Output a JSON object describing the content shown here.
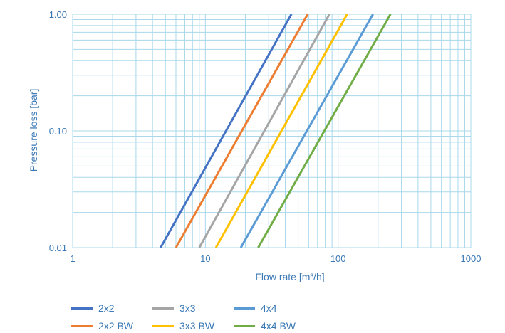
{
  "chart_data": {
    "type": "line",
    "xscale": "log",
    "yscale": "log",
    "xlim": [
      1,
      1000
    ],
    "ylim": [
      0.01,
      1.0
    ],
    "xlabel": "Flow rate [m³/h]",
    "ylabel": "Pressure loss [bar]",
    "x_ticks": [
      1,
      10,
      100,
      1000
    ],
    "x_tick_labels": [
      "1",
      "10",
      "100",
      "1000"
    ],
    "y_ticks": [
      0.01,
      0.1,
      1.0
    ],
    "y_tick_labels": [
      "0.01",
      "0.10",
      "1.00"
    ],
    "grid": true,
    "legend_position": "bottom-left",
    "series": [
      {
        "name": "2x2",
        "color": "#4472c4",
        "x": [
          4.6,
          44.5
        ],
        "y": [
          0.01,
          1.0
        ]
      },
      {
        "name": "2x2 BW",
        "color": "#ed7d31",
        "x": [
          6.0,
          59.0
        ],
        "y": [
          0.01,
          1.0
        ]
      },
      {
        "name": "3x3",
        "color": "#a5a5a5",
        "x": [
          9.0,
          86.0
        ],
        "y": [
          0.01,
          1.0
        ]
      },
      {
        "name": "3x3 BW",
        "color": "#ffc000",
        "x": [
          12.0,
          117.0
        ],
        "y": [
          0.01,
          1.0
        ]
      },
      {
        "name": "4x4",
        "color": "#5b9bd5",
        "x": [
          18.5,
          183.0
        ],
        "y": [
          0.01,
          1.0
        ]
      },
      {
        "name": "4x4 BW",
        "color": "#70ad47",
        "x": [
          25.0,
          248.0
        ],
        "y": [
          0.01,
          1.0
        ]
      }
    ]
  }
}
